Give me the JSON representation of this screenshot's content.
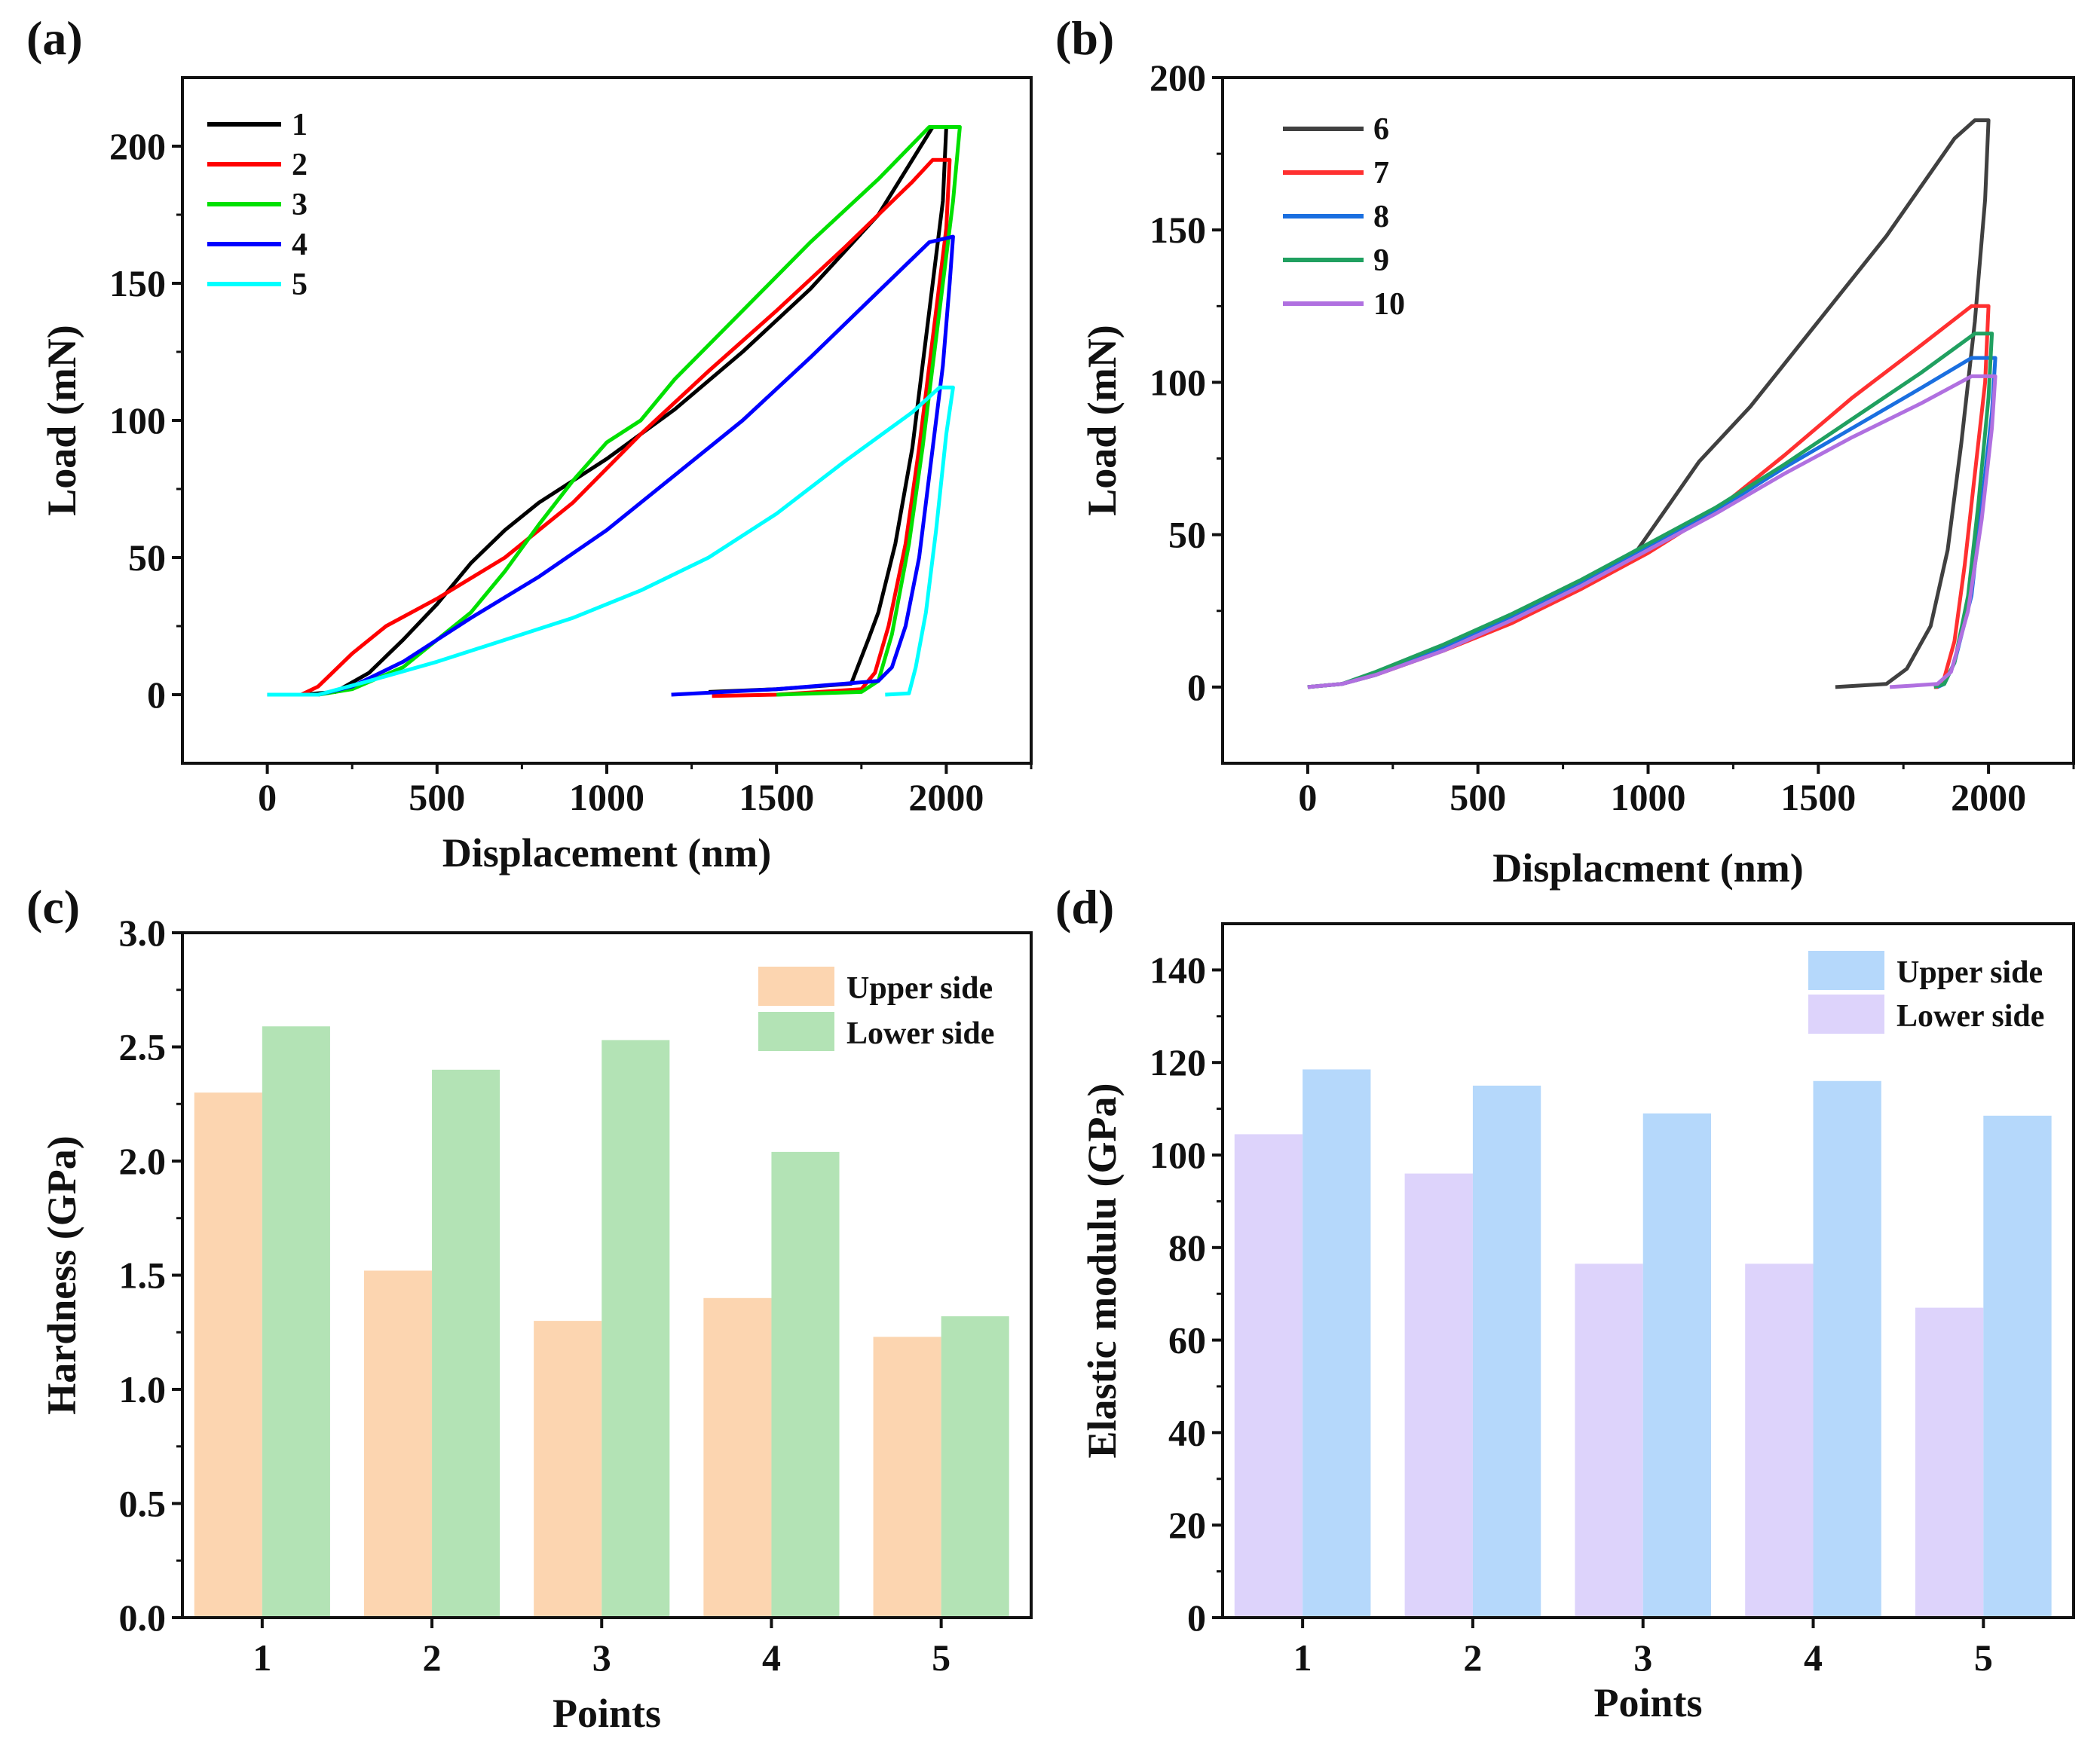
{
  "chart_data": [
    {
      "panel": "(a)",
      "type": "line",
      "xlabel": "Displacement (nm)",
      "ylabel": "Load (mN)",
      "xlim": [
        -250,
        2250
      ],
      "ylim": [
        -25,
        225
      ],
      "xticks": [
        0,
        500,
        1000,
        1500,
        2000
      ],
      "yticks": [
        0,
        50,
        100,
        150,
        200
      ],
      "grid": false,
      "legend_position": "top-left",
      "series": [
        {
          "name": "1",
          "color": "#000000",
          "points": [
            [
              0,
              0
            ],
            [
              100,
              0
            ],
            [
              200,
              1
            ],
            [
              300,
              8
            ],
            [
              400,
              20
            ],
            [
              500,
              33
            ],
            [
              600,
              48
            ],
            [
              700,
              60
            ],
            [
              800,
              70
            ],
            [
              900,
              78
            ],
            [
              1000,
              86
            ],
            [
              1100,
              95
            ],
            [
              1200,
              104
            ],
            [
              1400,
              125
            ],
            [
              1600,
              148
            ],
            [
              1800,
              175
            ],
            [
              1960,
              207
            ],
            [
              2000,
              207
            ],
            [
              1990,
              180
            ],
            [
              1950,
              140
            ],
            [
              1900,
              90
            ],
            [
              1850,
              55
            ],
            [
              1800,
              30
            ],
            [
              1770,
              20
            ],
            [
              1720,
              4
            ],
            [
              1500,
              2
            ],
            [
              1300,
              1
            ]
          ]
        },
        {
          "name": "2",
          "color": "#ff0000",
          "points": [
            [
              0,
              0
            ],
            [
              100,
              0
            ],
            [
              150,
              3
            ],
            [
              250,
              15
            ],
            [
              350,
              25
            ],
            [
              500,
              35
            ],
            [
              700,
              50
            ],
            [
              900,
              70
            ],
            [
              1100,
              95
            ],
            [
              1300,
              118
            ],
            [
              1500,
              140
            ],
            [
              1700,
              163
            ],
            [
              1900,
              187
            ],
            [
              1960,
              195
            ],
            [
              2010,
              195
            ],
            [
              2000,
              170
            ],
            [
              1960,
              130
            ],
            [
              1920,
              90
            ],
            [
              1880,
              55
            ],
            [
              1830,
              25
            ],
            [
              1790,
              8
            ],
            [
              1750,
              2
            ],
            [
              1500,
              0
            ],
            [
              1310,
              -0.5
            ]
          ]
        },
        {
          "name": "3",
          "color": "#00e000",
          "points": [
            [
              0,
              0
            ],
            [
              150,
              0
            ],
            [
              250,
              2
            ],
            [
              400,
              10
            ],
            [
              500,
              20
            ],
            [
              600,
              30
            ],
            [
              700,
              45
            ],
            [
              800,
              62
            ],
            [
              900,
              78
            ],
            [
              1000,
              92
            ],
            [
              1100,
              100
            ],
            [
              1200,
              115
            ],
            [
              1400,
              140
            ],
            [
              1600,
              165
            ],
            [
              1800,
              188
            ],
            [
              1950,
              207
            ],
            [
              2040,
              207
            ],
            [
              2020,
              180
            ],
            [
              1970,
              130
            ],
            [
              1930,
              90
            ],
            [
              1890,
              55
            ],
            [
              1840,
              22
            ],
            [
              1800,
              5
            ],
            [
              1750,
              1
            ],
            [
              1500,
              0
            ]
          ]
        },
        {
          "name": "4",
          "color": "#0000ff",
          "points": [
            [
              0,
              0
            ],
            [
              150,
              0
            ],
            [
              250,
              3
            ],
            [
              400,
              12
            ],
            [
              600,
              28
            ],
            [
              800,
              43
            ],
            [
              1000,
              60
            ],
            [
              1200,
              80
            ],
            [
              1400,
              100
            ],
            [
              1600,
              123
            ],
            [
              1800,
              147
            ],
            [
              1950,
              165
            ],
            [
              2020,
              167
            ],
            [
              2010,
              150
            ],
            [
              1990,
              120
            ],
            [
              1950,
              80
            ],
            [
              1920,
              50
            ],
            [
              1880,
              25
            ],
            [
              1840,
              10
            ],
            [
              1800,
              5
            ],
            [
              1500,
              2
            ],
            [
              1190,
              0
            ]
          ]
        },
        {
          "name": "5",
          "color": "#00ffff",
          "points": [
            [
              0,
              0
            ],
            [
              150,
              0
            ],
            [
              300,
              5
            ],
            [
              500,
              12
            ],
            [
              700,
              20
            ],
            [
              900,
              28
            ],
            [
              1100,
              38
            ],
            [
              1300,
              50
            ],
            [
              1500,
              66
            ],
            [
              1700,
              85
            ],
            [
              1900,
              103
            ],
            [
              1980,
              112
            ],
            [
              2020,
              112
            ],
            [
              2000,
              95
            ],
            [
              1970,
              60
            ],
            [
              1940,
              30
            ],
            [
              1910,
              10
            ],
            [
              1890,
              0.5
            ],
            [
              1820,
              0
            ]
          ]
        }
      ]
    },
    {
      "panel": "(b)",
      "type": "line",
      "xlabel": "Displacment (nm)",
      "ylabel": "Load (mN)",
      "xlim": [
        -250,
        2250
      ],
      "ylim": [
        -25,
        200
      ],
      "xticks": [
        0,
        500,
        1000,
        1500,
        2000
      ],
      "yticks": [
        0,
        50,
        100,
        150,
        200
      ],
      "grid": false,
      "legend_position": "top-left",
      "series": [
        {
          "name": "6",
          "color": "#404040",
          "points": [
            [
              0,
              0
            ],
            [
              100,
              1
            ],
            [
              200,
              4
            ],
            [
              400,
              12
            ],
            [
              600,
              22
            ],
            [
              800,
              33
            ],
            [
              950,
              42
            ],
            [
              1050,
              58
            ],
            [
              1150,
              74
            ],
            [
              1300,
              92
            ],
            [
              1500,
              120
            ],
            [
              1700,
              148
            ],
            [
              1900,
              180
            ],
            [
              1960,
              186
            ],
            [
              2000,
              186
            ],
            [
              1990,
              160
            ],
            [
              1960,
              120
            ],
            [
              1920,
              80
            ],
            [
              1880,
              45
            ],
            [
              1830,
              20
            ],
            [
              1760,
              6
            ],
            [
              1700,
              1
            ],
            [
              1550,
              0
            ]
          ]
        },
        {
          "name": "7",
          "color": "#ff3030",
          "points": [
            [
              0,
              0
            ],
            [
              100,
              1
            ],
            [
              200,
              4
            ],
            [
              400,
              12
            ],
            [
              600,
              21
            ],
            [
              800,
              32
            ],
            [
              1000,
              44
            ],
            [
              1200,
              58
            ],
            [
              1400,
              76
            ],
            [
              1600,
              95
            ],
            [
              1800,
              112
            ],
            [
              1950,
              125
            ],
            [
              2000,
              125
            ],
            [
              1990,
              100
            ],
            [
              1960,
              70
            ],
            [
              1930,
              40
            ],
            [
              1900,
              15
            ],
            [
              1870,
              3
            ],
            [
              1850,
              0
            ],
            [
              1840,
              0
            ]
          ]
        },
        {
          "name": "8",
          "color": "#1a6fe0",
          "points": [
            [
              0,
              0
            ],
            [
              100,
              1
            ],
            [
              200,
              4
            ],
            [
              400,
              13
            ],
            [
              600,
              23
            ],
            [
              800,
              34
            ],
            [
              1000,
              46
            ],
            [
              1200,
              58
            ],
            [
              1400,
              72
            ],
            [
              1600,
              85
            ],
            [
              1800,
              98
            ],
            [
              1950,
              108
            ],
            [
              2020,
              108
            ],
            [
              2010,
              90
            ],
            [
              1980,
              60
            ],
            [
              1950,
              30
            ],
            [
              1900,
              8
            ],
            [
              1870,
              1
            ],
            [
              1850,
              0
            ]
          ]
        },
        {
          "name": "9",
          "color": "#20a060",
          "points": [
            [
              0,
              0
            ],
            [
              100,
              1
            ],
            [
              200,
              5
            ],
            [
              400,
              14
            ],
            [
              600,
              24
            ],
            [
              800,
              35
            ],
            [
              1000,
              47
            ],
            [
              1200,
              59
            ],
            [
              1400,
              73
            ],
            [
              1600,
              88
            ],
            [
              1800,
              103
            ],
            [
              1960,
              116
            ],
            [
              2010,
              116
            ],
            [
              2000,
              95
            ],
            [
              1970,
              60
            ],
            [
              1940,
              30
            ],
            [
              1900,
              8
            ],
            [
              1870,
              1
            ],
            [
              1840,
              0
            ]
          ]
        },
        {
          "name": "10",
          "color": "#b070e0",
          "points": [
            [
              0,
              0
            ],
            [
              100,
              1
            ],
            [
              200,
              4
            ],
            [
              400,
              12
            ],
            [
              600,
              22
            ],
            [
              800,
              33
            ],
            [
              1000,
              45
            ],
            [
              1200,
              57
            ],
            [
              1400,
              70
            ],
            [
              1600,
              82
            ],
            [
              1800,
              93
            ],
            [
              1950,
              102
            ],
            [
              2020,
              102
            ],
            [
              2010,
              85
            ],
            [
              1980,
              55
            ],
            [
              1940,
              25
            ],
            [
              1890,
              5
            ],
            [
              1850,
              1
            ],
            [
              1710,
              0
            ]
          ]
        }
      ]
    },
    {
      "panel": "(c)",
      "type": "bar",
      "xlabel": "Points",
      "ylabel": "Hardness (GPa)",
      "categories": [
        "1",
        "2",
        "3",
        "4",
        "5"
      ],
      "ylim": [
        0,
        3.0
      ],
      "yticks": [
        "0.0",
        "0.5",
        "1.0",
        "1.5",
        "2.0",
        "2.5",
        "3.0"
      ],
      "grid": false,
      "legend_position": "top-right",
      "series": [
        {
          "name": "Upper side",
          "color": "#fcd5b0",
          "values": [
            2.3,
            1.52,
            1.3,
            1.4,
            1.23
          ]
        },
        {
          "name": "Lower side",
          "color": "#b3e3b5",
          "values": [
            2.59,
            2.4,
            2.53,
            2.04,
            1.32
          ]
        }
      ]
    },
    {
      "panel": "(d)",
      "type": "bar",
      "xlabel": "Points",
      "ylabel": "Elastic modulu (GPa)",
      "categories": [
        "1",
        "2",
        "3",
        "4",
        "5"
      ],
      "ylim": [
        0,
        150
      ],
      "yticks": [
        "0",
        "20",
        "40",
        "60",
        "80",
        "100",
        "120",
        "140"
      ],
      "grid": false,
      "legend_position": "top-right",
      "series": [
        {
          "name": "Lower side",
          "color": "#ddd3fb",
          "values": [
            104.5,
            96,
            76.5,
            76.5,
            67
          ]
        },
        {
          "name": "Upper side",
          "color": "#b5d8fb",
          "values": [
            118.5,
            115,
            109,
            116,
            108.5
          ]
        }
      ],
      "legend_order": [
        "Upper side",
        "Lower side"
      ]
    }
  ]
}
